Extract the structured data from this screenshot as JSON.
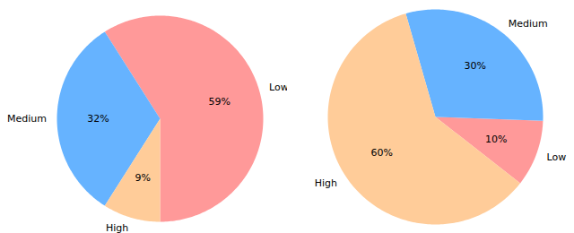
{
  "chart_data": [
    {
      "type": "pie",
      "categories": [
        "Low",
        "Medium",
        "High"
      ],
      "values": [
        59,
        32,
        9
      ],
      "value_labels": [
        "59%",
        "32%",
        "9%"
      ],
      "colors": [
        "#ff9999",
        "#66b3ff",
        "#ffcc99"
      ],
      "data_labels": true
    },
    {
      "type": "pie",
      "categories": [
        "Low",
        "Medium",
        "High"
      ],
      "values": [
        10,
        30,
        60
      ],
      "value_labels": [
        "10%",
        "30%",
        "60%"
      ],
      "colors": [
        "#ff9999",
        "#66b3ff",
        "#ffcc99"
      ],
      "data_labels": true
    }
  ]
}
